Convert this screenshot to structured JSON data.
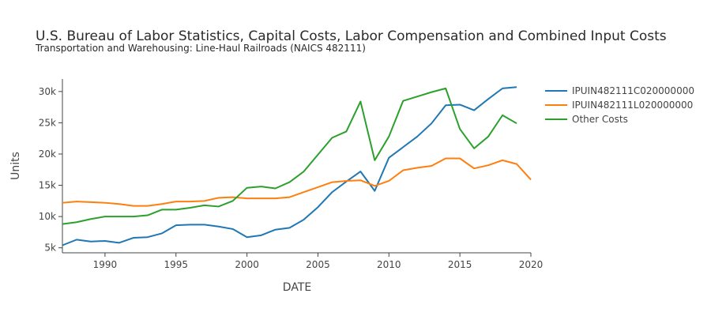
{
  "chart_data": {
    "type": "line",
    "title": "U.S. Bureau of Labor Statistics, Capital Costs, Labor Compensation and Combined Input Costs",
    "subtitle": "Transportation and Warehousing: Line-Haul Railroads (NAICS 482111)",
    "xlabel": "DATE",
    "ylabel": "Units",
    "xlim": [
      1987,
      2020
    ],
    "ylim": [
      4200,
      32000
    ],
    "x_ticks": [
      1990,
      1995,
      2000,
      2005,
      2010,
      2015,
      2020
    ],
    "x_tick_labels": [
      "1990",
      "1995",
      "2000",
      "2005",
      "2010",
      "2015",
      "2020"
    ],
    "y_ticks": [
      5000,
      10000,
      15000,
      20000,
      25000,
      30000
    ],
    "y_tick_labels": [
      "5k",
      "10k",
      "15k",
      "20k",
      "25k",
      "30k"
    ],
    "grid": false,
    "legend_position": "right",
    "x": [
      1987,
      1988,
      1989,
      1990,
      1991,
      1992,
      1993,
      1994,
      1995,
      1996,
      1997,
      1998,
      1999,
      2000,
      2001,
      2002,
      2003,
      2004,
      2005,
      2006,
      2007,
      2008,
      2009,
      2010,
      2011,
      2012,
      2013,
      2014,
      2015,
      2016,
      2017,
      2018,
      2019,
      2020
    ],
    "series": [
      {
        "name": "IPUIN482111C020000000",
        "color": "#1f77b4",
        "values": [
          5400,
          6300,
          6000,
          6100,
          5800,
          6600,
          6700,
          7300,
          8600,
          8700,
          8700,
          8400,
          8000,
          6700,
          7000,
          7900,
          8200,
          9500,
          11500,
          13900,
          15600,
          17200,
          14100,
          19400,
          21100,
          22800,
          24900,
          27800,
          27900,
          27000,
          28800,
          30500,
          30700,
          null
        ]
      },
      {
        "name": "IPUIN482111L020000000",
        "color": "#ff7f0e",
        "values": [
          12200,
          12400,
          12300,
          12200,
          12000,
          11700,
          11700,
          12000,
          12400,
          12400,
          12500,
          13000,
          13100,
          12900,
          12900,
          12900,
          13100,
          13900,
          14700,
          15500,
          15700,
          15800,
          14900,
          15700,
          17400,
          17800,
          18100,
          19300,
          19300,
          17700,
          18200,
          19000,
          18400,
          15900
        ]
      },
      {
        "name": "Other Costs",
        "color": "#2ca02c",
        "values": [
          8800,
          9100,
          9600,
          10000,
          10000,
          10000,
          10200,
          11100,
          11100,
          11400,
          11800,
          11600,
          12500,
          14600,
          14800,
          14500,
          15500,
          17200,
          19900,
          22600,
          23600,
          28400,
          19000,
          22800,
          28500,
          29200,
          29900,
          30500,
          24000,
          20900,
          22800,
          26200,
          24900,
          null
        ]
      }
    ]
  }
}
